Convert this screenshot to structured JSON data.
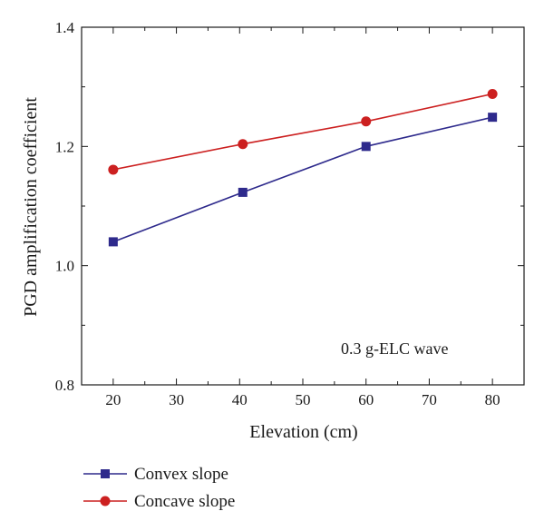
{
  "chart_data": {
    "type": "line",
    "xlabel": "Elevation (cm)",
    "ylabel": "PGD amplification coefficient",
    "xlim": [
      15,
      85
    ],
    "ylim": [
      0.8,
      1.4
    ],
    "xticks": [
      "20",
      "30",
      "40",
      "50",
      "60",
      "70",
      "80"
    ],
    "yticks": [
      "0.8",
      "1.0",
      "1.2",
      "1.4"
    ],
    "annotation": "0.3 g-ELC wave",
    "grid": false,
    "legend_position": "bottom-left, below plot",
    "series": [
      {
        "name": "Convex slope",
        "marker": "square",
        "color": "#2e2a8c",
        "x": [
          20,
          40.5,
          60,
          80
        ],
        "y": [
          1.04,
          1.123,
          1.2,
          1.249
        ]
      },
      {
        "name": "Concave slope",
        "marker": "circle",
        "color": "#cc2020",
        "x": [
          20,
          40.5,
          60,
          80
        ],
        "y": [
          1.161,
          1.204,
          1.242,
          1.288
        ]
      }
    ]
  }
}
